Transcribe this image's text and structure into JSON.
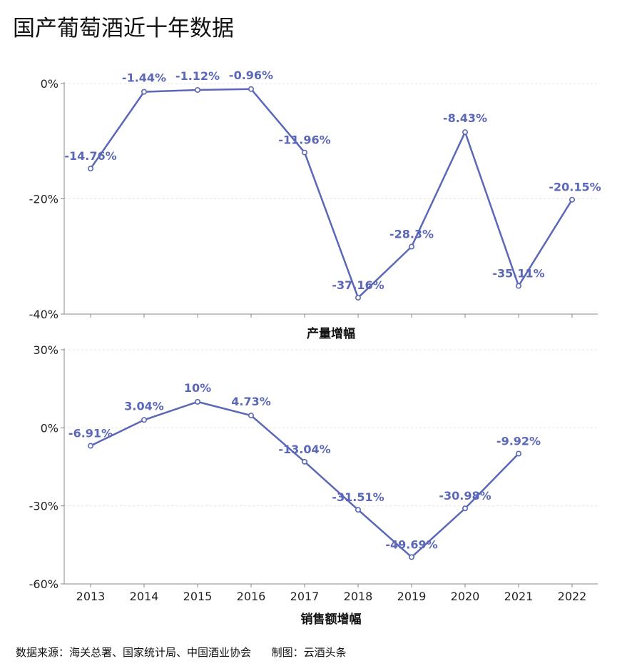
{
  "title": "国产葡萄酒近十年数据",
  "source": "数据来源：海关总署、国家统计局、中国酒业协会      制图：云酒头条",
  "colors": {
    "line": "#5b67b8",
    "grid": "#e4e4e4",
    "axis": "#888888",
    "label": "#5b67b8"
  },
  "chart_data": [
    {
      "type": "line",
      "title": "",
      "xlabel": "产量增幅",
      "ylabel": "",
      "categories": [
        "2013",
        "2014",
        "2015",
        "2016",
        "2017",
        "2018",
        "2019",
        "2020",
        "2021",
        "2022"
      ],
      "series": [
        {
          "values": [
            -14.76,
            -1.44,
            -1.12,
            -0.96,
            -11.96,
            -37.16,
            -28.3,
            -8.43,
            -35.11,
            -20.15
          ],
          "labels": [
            "-14.76%",
            "-1.44%",
            "-1.12%",
            "-0.96%",
            "-11.96%",
            "-37.16%",
            "-28.3%",
            "-8.43%",
            "-35.11%",
            "-20.15%"
          ]
        }
      ],
      "ylim": [
        -40,
        0
      ],
      "yticks": [
        0,
        -20,
        -40
      ],
      "yticklabels": [
        "0%",
        "-20%",
        "-40%"
      ],
      "grid": true,
      "show_xtick_labels": false
    },
    {
      "type": "line",
      "title": "",
      "xlabel": "销售额增幅",
      "ylabel": "",
      "categories": [
        "2013",
        "2014",
        "2015",
        "2016",
        "2017",
        "2018",
        "2019",
        "2020",
        "2021",
        "2022"
      ],
      "series": [
        {
          "values": [
            -6.91,
            3.04,
            10,
            4.73,
            -13.04,
            -31.51,
            -49.69,
            -30.98,
            -9.92,
            null
          ],
          "labels": [
            "-6.91%",
            "3.04%",
            "10%",
            "4.73%",
            "-13.04%",
            "-31.51%",
            "-49.69%",
            "-30.98%",
            "-9.92%",
            ""
          ]
        }
      ],
      "ylim": [
        -60,
        30
      ],
      "yticks": [
        30,
        0,
        -30,
        -60
      ],
      "yticklabels": [
        "30%",
        "0%",
        "-30%",
        "-60%"
      ],
      "grid": true,
      "show_xtick_labels": true
    }
  ]
}
